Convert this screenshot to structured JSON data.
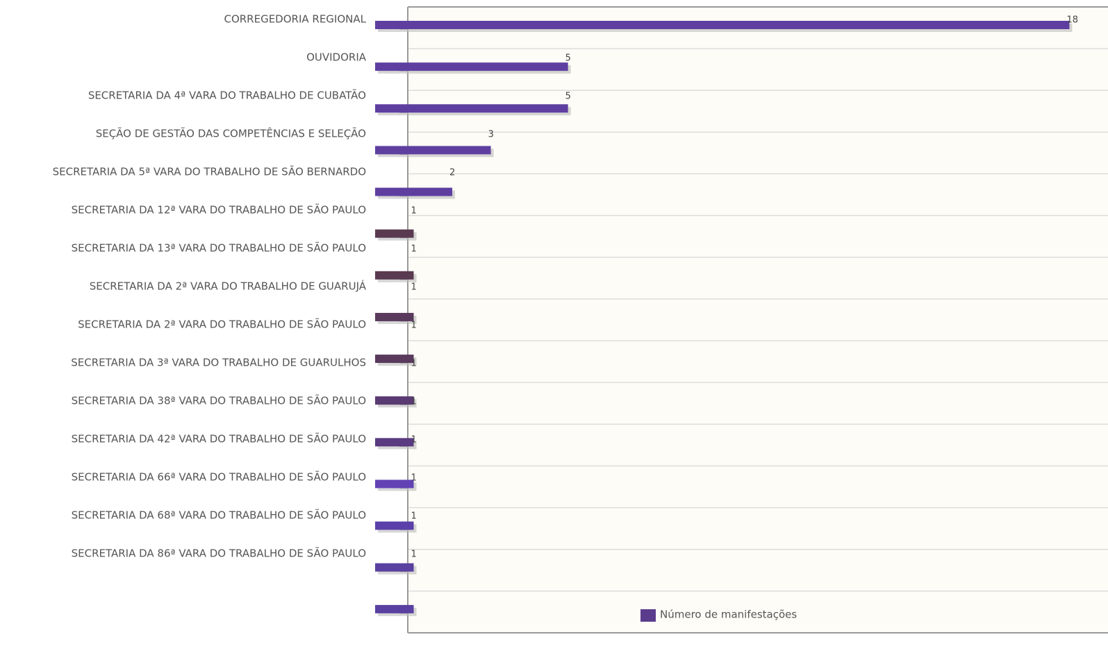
{
  "chart_data": {
    "type": "barh",
    "categories": [
      "CORREGEDORIA REGIONAL",
      "OUVIDORIA",
      "SECRETARIA DA 4ª VARA DO TRABALHO DE CUBATÃO",
      "SEÇÃO DE GESTÃO DAS COMPETÊNCIAS E SELEÇÃO",
      "SECRETARIA DA 5ª VARA DO TRABALHO DE SÃO BERNARDO",
      "SECRETARIA DA 12ª VARA DO TRABALHO DE SÃO PAULO",
      "SECRETARIA DA 13ª VARA DO TRABALHO DE SÃO PAULO",
      "SECRETARIA DA 2ª VARA DO TRABALHO DE GUARUJÁ",
      "SECRETARIA DA 2ª VARA DO TRABALHO DE SÃO PAULO",
      "SECRETARIA DA 3ª VARA DO TRABALHO DE GUARULHOS",
      "SECRETARIA DA 38ª VARA DO TRABALHO DE SÃO PAULO",
      "SECRETARIA DA 42ª VARA DO TRABALHO DE SÃO PAULO",
      "SECRETARIA DA 66ª VARA DO TRABALHO DE SÃO PAULO",
      "SECRETARIA DA 68ª VARA DO TRABALHO DE SÃO PAULO",
      "SECRETARIA DA 86ª VARA DO TRABALHO DE SÃO PAULO"
    ],
    "series": [
      {
        "name": "Número de manifestações",
        "color": "#5b3c8c",
        "values": [
          18,
          5,
          5,
          3,
          2,
          1,
          1,
          1,
          1,
          1,
          1,
          1,
          1,
          1,
          1
        ],
        "colors": [
          "#5e3fa0",
          "#5e3fa0",
          "#5e3fa0",
          "#5e3fa0",
          "#5e3fa0",
          "#5a3a50",
          "#5a3a50",
          "#5a3a5c",
          "#5a3a5c",
          "#5a3a72",
          "#5a3a80",
          "#6242b4",
          "#5a40a8",
          "#5a40a0",
          "#5a40a0"
        ]
      }
    ],
    "xlim": [
      0,
      19
    ],
    "grid": true,
    "legend": "bottom"
  }
}
